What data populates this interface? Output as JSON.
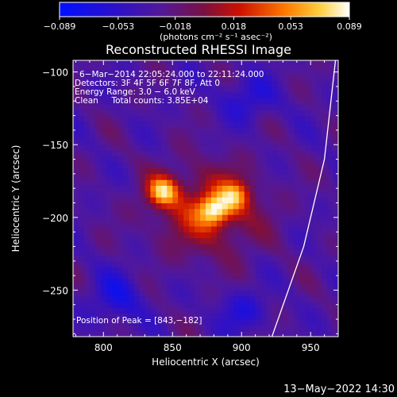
{
  "chart_data": {
    "type": "heatmap",
    "title": "Reconstructed RHESSI Image",
    "xlabel": "Heliocentric X (arcsec)",
    "ylabel": "Heliocentric Y (arcsec)",
    "xlim": [
      778,
      970
    ],
    "ylim": [
      -282,
      -92
    ],
    "x_ticks": [
      800,
      850,
      900,
      950
    ],
    "y_ticks": [
      -100,
      -150,
      -200,
      -250
    ],
    "x_tick_labels": [
      "800",
      "850",
      "900",
      "950"
    ],
    "y_tick_labels": [
      "−100",
      "−150",
      "−200",
      "−250"
    ],
    "colorbar": {
      "min": -0.089,
      "max": 0.089,
      "ticks": [
        -0.089,
        -0.053,
        -0.018,
        0.018,
        0.053,
        0.089
      ],
      "tick_labels": [
        "−0.089",
        "−0.053",
        "−0.018",
        "0.018",
        "0.053",
        "0.089"
      ],
      "units": "(photons cm⁻² s⁻¹ asec⁻²)",
      "colormap": "blue-purple-red-yellow-white"
    },
    "annotations": [
      "6−Mar−2014 22:05:24.000 to 22:11:24.000",
      "Detectors: 3F 4F 5F 6F 7F 8F, Att 0",
      "Energy Range: 3.0 − 6.0 keV",
      "Clean     Total counts: 3.85E+04",
      "Position of Peak = [843,−182]"
    ],
    "sources": [
      {
        "x": 843,
        "y": -182,
        "peak": 0.089
      },
      {
        "x": 880,
        "y": -195,
        "peak": 0.08
      },
      {
        "x": 895,
        "y": -185,
        "peak": 0.065
      }
    ],
    "limb_curve": [
      [
        922,
        -282
      ],
      [
        945,
        -220
      ],
      [
        960,
        -160
      ],
      [
        968,
        -92
      ]
    ],
    "footer": "13−May−2022 14:30",
    "grid": false
  },
  "colors": {
    "background": "#000000",
    "axis": "#ffffff",
    "limb": "#ffffff"
  }
}
